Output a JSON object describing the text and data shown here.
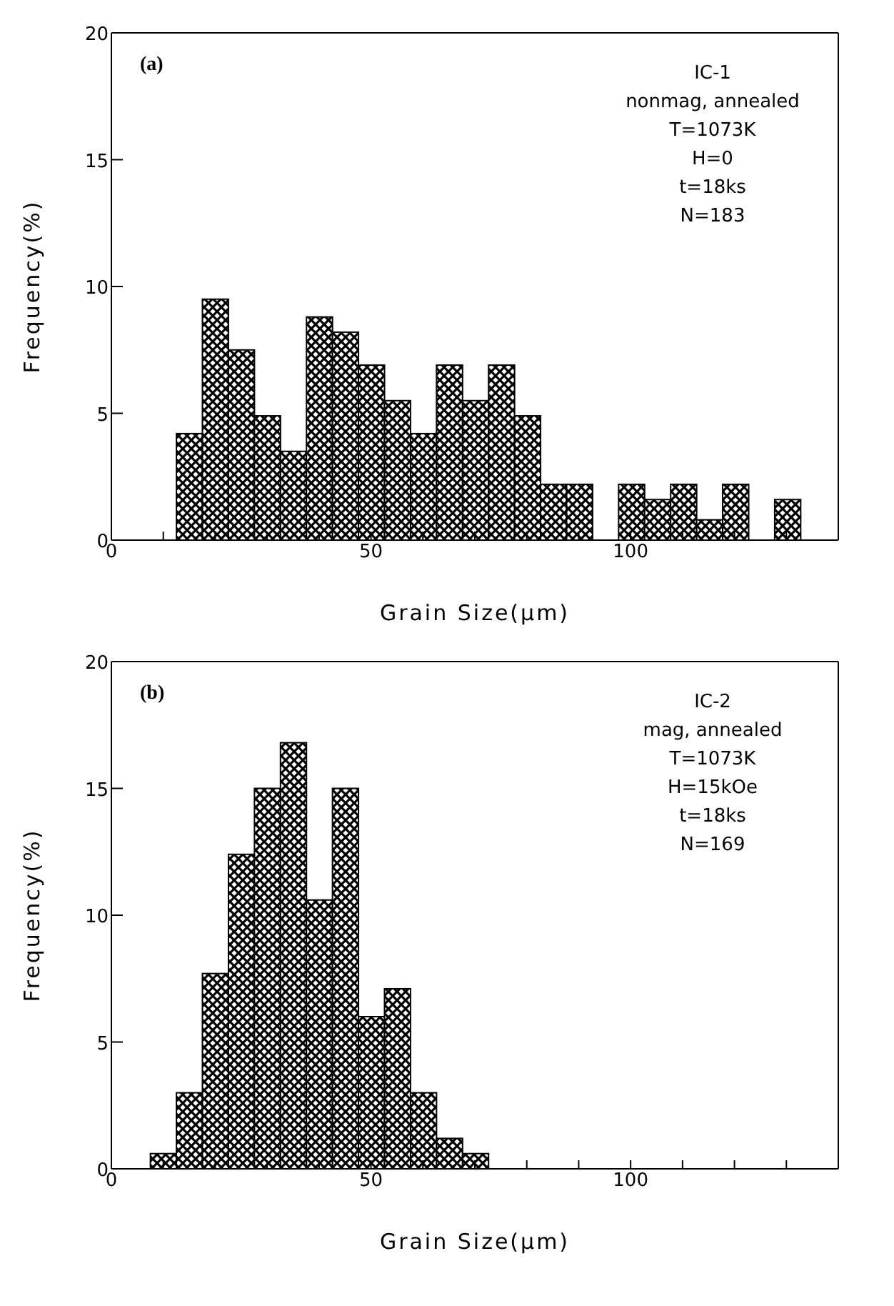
{
  "chart_data": [
    {
      "type": "histogram",
      "xlabel": "Grain Size(μm)",
      "ylabel": "Frequency(%)",
      "annotations": [
        "(a)",
        "IC-1",
        "nonmag, annealed",
        "T=1073K",
        "H=0",
        "t=18ks",
        "N=183"
      ],
      "bins": [
        12.5,
        17.5,
        22.5,
        27.5,
        32.5,
        37.5,
        42.5,
        47.5,
        52.5,
        57.5,
        62.5,
        67.5,
        72.5,
        77.5,
        82.5,
        87.5,
        92.5,
        97.5,
        102.5,
        107.5,
        112.5,
        117.5,
        122.5,
        127.5,
        132.5
      ],
      "values": [
        4.2,
        9.5,
        7.5,
        4.9,
        3.5,
        8.8,
        8.2,
        6.9,
        5.5,
        4.2,
        6.9,
        5.5,
        6.9,
        4.9,
        2.2,
        2.2,
        0,
        2.2,
        1.6,
        2.2,
        0.8,
        2.2,
        0,
        1.6
      ],
      "color": "#000000",
      "xlim": [
        0,
        140
      ],
      "xticks": [
        0,
        {
          "value": 10,
          "label": null
        },
        {
          "value": 20,
          "label": null
        },
        {
          "value": 30,
          "label": null
        },
        {
          "value": 40,
          "label": null
        },
        50,
        {
          "value": 60,
          "label": null
        },
        {
          "value": 70,
          "label": null
        },
        {
          "value": 80,
          "label": null
        },
        {
          "value": 90,
          "label": null
        },
        100,
        {
          "value": 110,
          "label": null
        },
        {
          "value": 120,
          "label": null
        },
        {
          "value": 130,
          "label": null
        }
      ],
      "ylim": [
        0,
        20
      ],
      "yticks": [
        0,
        5,
        10,
        15,
        20
      ],
      "grid": false,
      "legend": false
    },
    {
      "type": "histogram",
      "xlabel": "Grain Size(μm)",
      "ylabel": "Frequency(%)",
      "annotations": [
        "(b)",
        "IC-2",
        "mag, annealed",
        "T=1073K",
        "H=15kOe",
        "t=18ks",
        "N=169"
      ],
      "bins": [
        7.5,
        12.5,
        17.5,
        22.5,
        27.5,
        32.5,
        37.5,
        42.5,
        47.5,
        52.5,
        57.5,
        62.5,
        67.5,
        72.5
      ],
      "values": [
        0.6,
        3.0,
        7.7,
        12.4,
        15.0,
        16.8,
        10.6,
        15.0,
        6.0,
        7.1,
        3.0,
        1.2,
        0.6
      ],
      "color": "#000000",
      "xlim": [
        0,
        140
      ],
      "xticks": [
        0,
        {
          "value": 10,
          "label": null
        },
        {
          "value": 20,
          "label": null
        },
        {
          "value": 30,
          "label": null
        },
        {
          "value": 40,
          "label": null
        },
        50,
        {
          "value": 60,
          "label": null
        },
        {
          "value": 70,
          "label": null
        },
        {
          "value": 80,
          "label": null
        },
        {
          "value": 90,
          "label": null
        },
        100,
        {
          "value": 110,
          "label": null
        },
        {
          "value": 120,
          "label": null
        },
        {
          "value": 130,
          "label": null
        }
      ],
      "ylim": [
        0,
        20
      ],
      "yticks": [
        0,
        5,
        10,
        15,
        20
      ],
      "grid": false,
      "legend": false
    }
  ]
}
